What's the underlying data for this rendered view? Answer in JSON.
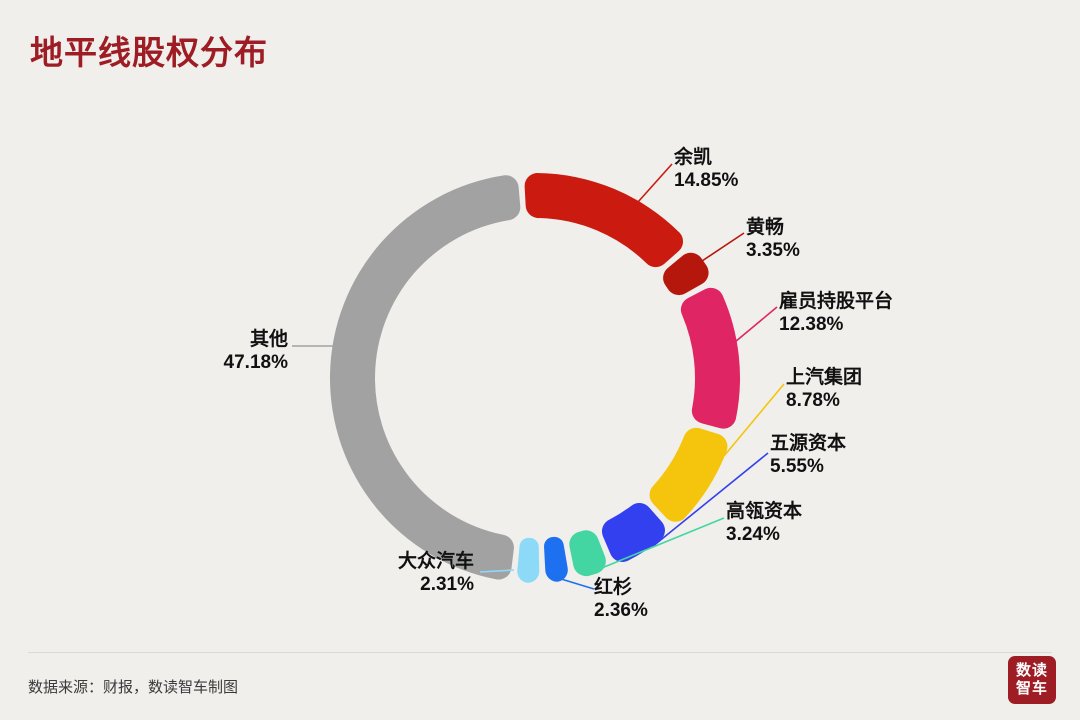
{
  "page": {
    "background": "#f0efec"
  },
  "header": {
    "title": "地平线股权分布",
    "title_color": "#9e1c23"
  },
  "chart_data": {
    "type": "pie",
    "variant": "donut",
    "title": "地平线股权分布",
    "unit": "%",
    "legend_position": "outside-callouts",
    "series": [
      {
        "name": "余凯",
        "value": 14.85,
        "pct_label": "14.85%",
        "color": "#cb1a10"
      },
      {
        "name": "黄畅",
        "value": 3.35,
        "pct_label": "3.35%",
        "color": "#b5170c"
      },
      {
        "name": "雇员持股平台",
        "value": 12.38,
        "pct_label": "12.38%",
        "color": "#e02565"
      },
      {
        "name": "上汽集团",
        "value": 8.78,
        "pct_label": "8.78%",
        "color": "#f5c40c"
      },
      {
        "name": "五源资本",
        "value": 5.55,
        "pct_label": "5.55%",
        "color": "#3340ef"
      },
      {
        "name": "高瓴资本",
        "value": 3.24,
        "pct_label": "3.24%",
        "color": "#43d6a2"
      },
      {
        "name": "红杉",
        "value": 2.36,
        "pct_label": "2.36%",
        "color": "#1d70f0"
      },
      {
        "name": "大众汽车",
        "value": 2.31,
        "pct_label": "2.31%",
        "color": "#8cd9f8"
      },
      {
        "name": "其他",
        "value": 47.18,
        "pct_label": "47.18%",
        "color": "#a3a2a2"
      }
    ]
  },
  "footer": {
    "source": "数据来源：财报，数读智车制图",
    "logo_line1": "数读",
    "logo_line2": "智车",
    "logo_bg": "#9e1c23"
  }
}
